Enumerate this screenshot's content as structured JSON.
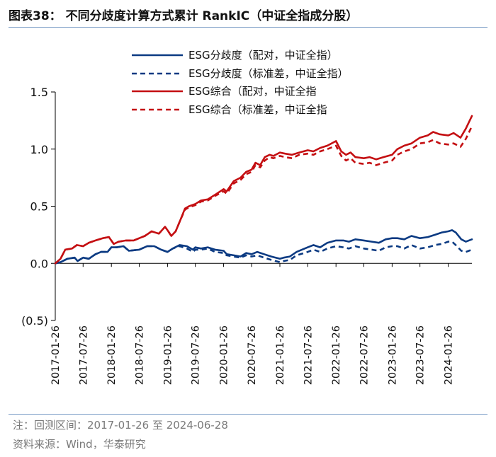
{
  "title": "图表38：  不同分歧度计算方式累计 RankIC（中证全指成分股）",
  "footer": {
    "note": "注：回测区间：2017-01-26 至 2024-06-28",
    "source": "资料来源：Wind，华泰研究"
  },
  "colors": {
    "blue": "#0b3a82",
    "red": "#c40f12",
    "rule": "#7a9cc6"
  },
  "chart_data": {
    "type": "line",
    "ylim": [
      -0.5,
      1.5
    ],
    "yticks": [
      -0.5,
      0.0,
      0.5,
      1.0,
      1.5
    ],
    "ytick_labels": [
      "(0.5)",
      "0.0",
      "0.5",
      "1.0",
      "1.5"
    ],
    "x_start": "2017-01-26",
    "x_end": "2024-06-28",
    "xticks": [
      "2017-01-26",
      "2017-07-26",
      "2018-01-26",
      "2018-07-26",
      "2019-01-26",
      "2019-07-26",
      "2020-01-26",
      "2020-07-26",
      "2021-01-26",
      "2021-07-26",
      "2022-01-26",
      "2022-07-26",
      "2023-01-26",
      "2023-07-26",
      "2024-01-26"
    ],
    "grid": false,
    "legend_position": "top-left",
    "series": [
      {
        "name": "ESG分歧度（配对，中证全指）",
        "color": "#0b3a82",
        "dash": "solid",
        "points": [
          [
            "2017-01-26",
            0.0
          ],
          [
            "2017-03-01",
            0.01
          ],
          [
            "2017-04-15",
            0.04
          ],
          [
            "2017-06-01",
            0.05
          ],
          [
            "2017-06-20",
            0.02
          ],
          [
            "2017-07-26",
            0.05
          ],
          [
            "2017-09-01",
            0.04
          ],
          [
            "2017-10-15",
            0.08
          ],
          [
            "2017-11-20",
            0.1
          ],
          [
            "2018-01-01",
            0.1
          ],
          [
            "2018-01-26",
            0.14
          ],
          [
            "2018-03-01",
            0.14
          ],
          [
            "2018-04-15",
            0.15
          ],
          [
            "2018-05-20",
            0.11
          ],
          [
            "2018-07-26",
            0.12
          ],
          [
            "2018-09-15",
            0.15
          ],
          [
            "2018-11-01",
            0.15
          ],
          [
            "2018-12-15",
            0.12
          ],
          [
            "2019-01-26",
            0.1
          ],
          [
            "2019-03-01",
            0.13
          ],
          [
            "2019-04-15",
            0.16
          ],
          [
            "2019-06-01",
            0.15
          ],
          [
            "2019-07-10",
            0.12
          ],
          [
            "2019-07-26",
            0.14
          ],
          [
            "2019-09-01",
            0.13
          ],
          [
            "2019-10-15",
            0.14
          ],
          [
            "2019-12-01",
            0.12
          ],
          [
            "2020-01-26",
            0.11
          ],
          [
            "2020-02-15",
            0.08
          ],
          [
            "2020-04-01",
            0.07
          ],
          [
            "2020-05-15",
            0.06
          ],
          [
            "2020-06-20",
            0.09
          ],
          [
            "2020-07-26",
            0.08
          ],
          [
            "2020-09-01",
            0.1
          ],
          [
            "2020-10-15",
            0.08
          ],
          [
            "2020-12-01",
            0.06
          ],
          [
            "2021-01-26",
            0.04
          ],
          [
            "2021-02-20",
            0.05
          ],
          [
            "2021-04-01",
            0.06
          ],
          [
            "2021-05-15",
            0.1
          ],
          [
            "2021-07-26",
            0.14
          ],
          [
            "2021-09-01",
            0.16
          ],
          [
            "2021-10-15",
            0.14
          ],
          [
            "2021-12-01",
            0.18
          ],
          [
            "2022-01-26",
            0.2
          ],
          [
            "2022-03-15",
            0.2
          ],
          [
            "2022-04-20",
            0.19
          ],
          [
            "2022-06-01",
            0.21
          ],
          [
            "2022-07-26",
            0.2
          ],
          [
            "2022-09-15",
            0.19
          ],
          [
            "2022-11-01",
            0.18
          ],
          [
            "2022-12-15",
            0.21
          ],
          [
            "2023-01-26",
            0.22
          ],
          [
            "2023-03-01",
            0.22
          ],
          [
            "2023-04-15",
            0.21
          ],
          [
            "2023-06-01",
            0.24
          ],
          [
            "2023-07-26",
            0.22
          ],
          [
            "2023-09-15",
            0.23
          ],
          [
            "2023-11-01",
            0.25
          ],
          [
            "2023-12-15",
            0.27
          ],
          [
            "2024-01-26",
            0.28
          ],
          [
            "2024-02-20",
            0.29
          ],
          [
            "2024-03-15",
            0.27
          ],
          [
            "2024-04-20",
            0.21
          ],
          [
            "2024-05-20",
            0.19
          ],
          [
            "2024-06-28",
            0.21
          ]
        ]
      },
      {
        "name": "ESG分歧度（标准差，中证全指）",
        "color": "#0b3a82",
        "dash": "dashed",
        "points": [
          [
            "2017-01-26",
            0.0
          ],
          [
            "2017-03-01",
            0.01
          ],
          [
            "2017-04-15",
            0.04
          ],
          [
            "2017-06-01",
            0.05
          ],
          [
            "2017-06-20",
            0.02
          ],
          [
            "2017-07-26",
            0.05
          ],
          [
            "2017-09-01",
            0.04
          ],
          [
            "2017-10-15",
            0.08
          ],
          [
            "2017-11-20",
            0.1
          ],
          [
            "2018-01-01",
            0.1
          ],
          [
            "2018-01-26",
            0.14
          ],
          [
            "2018-03-01",
            0.14
          ],
          [
            "2018-04-15",
            0.15
          ],
          [
            "2018-05-20",
            0.11
          ],
          [
            "2018-07-26",
            0.12
          ],
          [
            "2018-09-15",
            0.15
          ],
          [
            "2018-11-01",
            0.15
          ],
          [
            "2018-12-15",
            0.12
          ],
          [
            "2019-01-26",
            0.1
          ],
          [
            "2019-03-01",
            0.13
          ],
          [
            "2019-04-15",
            0.15
          ],
          [
            "2019-06-01",
            0.13
          ],
          [
            "2019-07-10",
            0.1
          ],
          [
            "2019-07-26",
            0.12
          ],
          [
            "2019-09-01",
            0.12
          ],
          [
            "2019-10-15",
            0.13
          ],
          [
            "2019-12-01",
            0.1
          ],
          [
            "2020-01-26",
            0.09
          ],
          [
            "2020-02-15",
            0.07
          ],
          [
            "2020-04-01",
            0.06
          ],
          [
            "2020-05-15",
            0.05
          ],
          [
            "2020-06-20",
            0.07
          ],
          [
            "2020-07-26",
            0.06
          ],
          [
            "2020-09-01",
            0.07
          ],
          [
            "2020-10-15",
            0.05
          ],
          [
            "2020-12-01",
            0.03
          ],
          [
            "2021-01-26",
            0.01
          ],
          [
            "2021-02-20",
            0.02
          ],
          [
            "2021-04-01",
            0.03
          ],
          [
            "2021-05-15",
            0.07
          ],
          [
            "2021-07-26",
            0.1
          ],
          [
            "2021-09-01",
            0.12
          ],
          [
            "2021-10-15",
            0.1
          ],
          [
            "2021-12-01",
            0.13
          ],
          [
            "2022-01-26",
            0.15
          ],
          [
            "2022-03-15",
            0.14
          ],
          [
            "2022-04-20",
            0.13
          ],
          [
            "2022-06-01",
            0.15
          ],
          [
            "2022-07-26",
            0.13
          ],
          [
            "2022-09-15",
            0.12
          ],
          [
            "2022-11-01",
            0.11
          ],
          [
            "2022-12-15",
            0.14
          ],
          [
            "2023-01-26",
            0.15
          ],
          [
            "2023-03-01",
            0.15
          ],
          [
            "2023-04-15",
            0.13
          ],
          [
            "2023-06-01",
            0.16
          ],
          [
            "2023-07-26",
            0.13
          ],
          [
            "2023-09-15",
            0.14
          ],
          [
            "2023-11-01",
            0.16
          ],
          [
            "2023-12-15",
            0.17
          ],
          [
            "2024-01-26",
            0.19
          ],
          [
            "2024-02-20",
            0.19
          ],
          [
            "2024-03-15",
            0.16
          ],
          [
            "2024-04-20",
            0.11
          ],
          [
            "2024-05-20",
            0.1
          ],
          [
            "2024-06-28",
            0.12
          ]
        ]
      },
      {
        "name": "ESG综合（配对，中证全指",
        "color": "#c40f12",
        "dash": "solid",
        "points": [
          [
            "2017-01-26",
            0.0
          ],
          [
            "2017-03-01",
            0.04
          ],
          [
            "2017-04-01",
            0.12
          ],
          [
            "2017-05-15",
            0.13
          ],
          [
            "2017-06-15",
            0.16
          ],
          [
            "2017-07-26",
            0.15
          ],
          [
            "2017-09-01",
            0.18
          ],
          [
            "2017-10-15",
            0.2
          ],
          [
            "2017-12-01",
            0.22
          ],
          [
            "2018-01-10",
            0.23
          ],
          [
            "2018-02-10",
            0.17
          ],
          [
            "2018-03-15",
            0.19
          ],
          [
            "2018-05-01",
            0.2
          ],
          [
            "2018-06-20",
            0.2
          ],
          [
            "2018-07-26",
            0.22
          ],
          [
            "2018-09-01",
            0.24
          ],
          [
            "2018-10-15",
            0.28
          ],
          [
            "2018-12-01",
            0.26
          ],
          [
            "2019-01-10",
            0.32
          ],
          [
            "2019-01-26",
            0.29
          ],
          [
            "2019-02-20",
            0.24
          ],
          [
            "2019-03-20",
            0.28
          ],
          [
            "2019-04-20",
            0.38
          ],
          [
            "2019-05-20",
            0.48
          ],
          [
            "2019-06-15",
            0.5
          ],
          [
            "2019-07-26",
            0.52
          ],
          [
            "2019-09-01",
            0.55
          ],
          [
            "2019-10-15",
            0.56
          ],
          [
            "2019-12-01",
            0.6
          ],
          [
            "2020-01-26",
            0.65
          ],
          [
            "2020-02-15",
            0.63
          ],
          [
            "2020-04-01",
            0.72
          ],
          [
            "2020-05-15",
            0.75
          ],
          [
            "2020-06-20",
            0.8
          ],
          [
            "2020-07-26",
            0.82
          ],
          [
            "2020-08-20",
            0.88
          ],
          [
            "2020-09-20",
            0.86
          ],
          [
            "2020-10-20",
            0.93
          ],
          [
            "2020-11-20",
            0.95
          ],
          [
            "2020-12-15",
            0.94
          ],
          [
            "2021-01-26",
            0.97
          ],
          [
            "2021-03-01",
            0.96
          ],
          [
            "2021-04-15",
            0.95
          ],
          [
            "2021-06-01",
            0.97
          ],
          [
            "2021-07-26",
            0.99
          ],
          [
            "2021-09-01",
            0.98
          ],
          [
            "2021-10-15",
            1.01
          ],
          [
            "2021-12-01",
            1.03
          ],
          [
            "2022-01-26",
            1.07
          ],
          [
            "2022-03-01",
            0.98
          ],
          [
            "2022-04-01",
            0.95
          ],
          [
            "2022-05-01",
            0.97
          ],
          [
            "2022-06-01",
            0.93
          ],
          [
            "2022-07-26",
            0.92
          ],
          [
            "2022-09-01",
            0.93
          ],
          [
            "2022-10-15",
            0.91
          ],
          [
            "2022-12-01",
            0.93
          ],
          [
            "2023-01-26",
            0.95
          ],
          [
            "2023-03-01",
            1.0
          ],
          [
            "2023-04-15",
            1.03
          ],
          [
            "2023-06-01",
            1.05
          ],
          [
            "2023-07-26",
            1.1
          ],
          [
            "2023-09-15",
            1.12
          ],
          [
            "2023-10-20",
            1.15
          ],
          [
            "2023-12-01",
            1.13
          ],
          [
            "2024-01-26",
            1.12
          ],
          [
            "2024-03-01",
            1.14
          ],
          [
            "2024-04-15",
            1.1
          ],
          [
            "2024-05-20",
            1.18
          ],
          [
            "2024-06-28",
            1.29
          ]
        ]
      },
      {
        "name": "ESG综合（标准差，中证全指",
        "color": "#c40f12",
        "dash": "dashed",
        "points": [
          [
            "2017-01-26",
            0.0
          ],
          [
            "2017-03-01",
            0.04
          ],
          [
            "2017-04-01",
            0.12
          ],
          [
            "2017-05-15",
            0.13
          ],
          [
            "2017-06-15",
            0.16
          ],
          [
            "2017-07-26",
            0.15
          ],
          [
            "2017-09-01",
            0.18
          ],
          [
            "2017-10-15",
            0.2
          ],
          [
            "2017-12-01",
            0.22
          ],
          [
            "2018-01-10",
            0.23
          ],
          [
            "2018-02-10",
            0.17
          ],
          [
            "2018-03-15",
            0.19
          ],
          [
            "2018-05-01",
            0.2
          ],
          [
            "2018-06-20",
            0.2
          ],
          [
            "2018-07-26",
            0.22
          ],
          [
            "2018-09-01",
            0.24
          ],
          [
            "2018-10-15",
            0.28
          ],
          [
            "2018-12-01",
            0.26
          ],
          [
            "2019-01-10",
            0.32
          ],
          [
            "2019-01-26",
            0.29
          ],
          [
            "2019-02-20",
            0.24
          ],
          [
            "2019-03-20",
            0.28
          ],
          [
            "2019-04-20",
            0.38
          ],
          [
            "2019-05-20",
            0.47
          ],
          [
            "2019-06-15",
            0.49
          ],
          [
            "2019-07-26",
            0.51
          ],
          [
            "2019-09-01",
            0.54
          ],
          [
            "2019-10-15",
            0.55
          ],
          [
            "2019-12-01",
            0.59
          ],
          [
            "2020-01-26",
            0.63
          ],
          [
            "2020-02-15",
            0.61
          ],
          [
            "2020-04-01",
            0.7
          ],
          [
            "2020-05-15",
            0.73
          ],
          [
            "2020-06-20",
            0.78
          ],
          [
            "2020-07-26",
            0.8
          ],
          [
            "2020-08-20",
            0.86
          ],
          [
            "2020-09-20",
            0.84
          ],
          [
            "2020-10-20",
            0.9
          ],
          [
            "2020-11-20",
            0.93
          ],
          [
            "2020-12-15",
            0.92
          ],
          [
            "2021-01-26",
            0.94
          ],
          [
            "2021-03-01",
            0.93
          ],
          [
            "2021-04-15",
            0.92
          ],
          [
            "2021-06-01",
            0.95
          ],
          [
            "2021-07-26",
            0.96
          ],
          [
            "2021-09-01",
            0.95
          ],
          [
            "2021-10-15",
            0.98
          ],
          [
            "2021-12-01",
            1.0
          ],
          [
            "2022-01-26",
            1.03
          ],
          [
            "2022-03-01",
            0.94
          ],
          [
            "2022-04-01",
            0.9
          ],
          [
            "2022-05-01",
            0.92
          ],
          [
            "2022-06-01",
            0.88
          ],
          [
            "2022-07-26",
            0.87
          ],
          [
            "2022-09-01",
            0.88
          ],
          [
            "2022-10-15",
            0.86
          ],
          [
            "2022-12-01",
            0.88
          ],
          [
            "2023-01-26",
            0.9
          ],
          [
            "2023-03-01",
            0.95
          ],
          [
            "2023-04-15",
            0.98
          ],
          [
            "2023-06-01",
            1.0
          ],
          [
            "2023-07-26",
            1.05
          ],
          [
            "2023-09-15",
            1.06
          ],
          [
            "2023-10-20",
            1.08
          ],
          [
            "2023-12-01",
            1.05
          ],
          [
            "2024-01-26",
            1.04
          ],
          [
            "2024-03-01",
            1.05
          ],
          [
            "2024-04-15",
            1.02
          ],
          [
            "2024-05-20",
            1.09
          ],
          [
            "2024-06-28",
            1.2
          ]
        ]
      }
    ]
  }
}
